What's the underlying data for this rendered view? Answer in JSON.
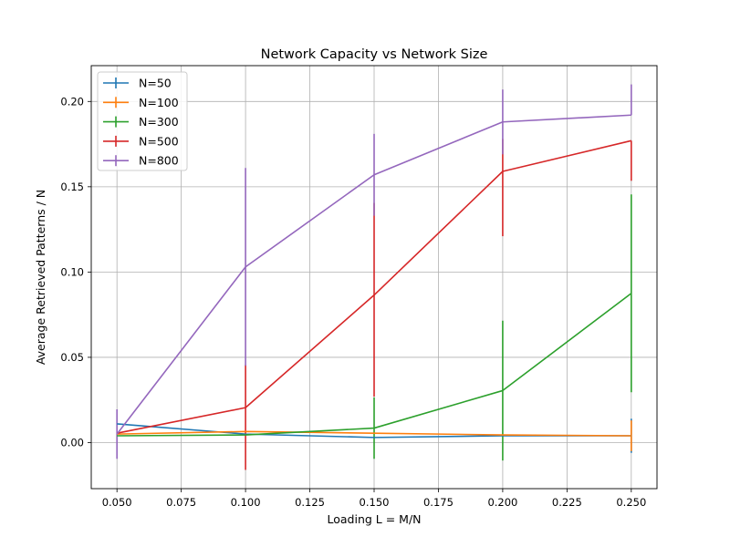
{
  "chart_data": {
    "type": "line",
    "title": "Network Capacity vs Network Size",
    "xlabel": "Loading L = M/N",
    "ylabel": "Average Retrieved Patterns / N",
    "x": [
      0.05,
      0.1,
      0.15,
      0.2,
      0.25
    ],
    "xlim": [
      0.04,
      0.26
    ],
    "ylim": [
      -0.027,
      0.221
    ],
    "xticks": [
      0.05,
      0.075,
      0.1,
      0.125,
      0.15,
      0.175,
      0.2,
      0.225,
      0.25
    ],
    "xtick_labels": [
      "0.050",
      "0.075",
      "0.100",
      "0.125",
      "0.150",
      "0.175",
      "0.200",
      "0.225",
      "0.250"
    ],
    "yticks": [
      0.0,
      0.05,
      0.1,
      0.15,
      0.2
    ],
    "ytick_labels": [
      "0.00",
      "0.05",
      "0.10",
      "0.15",
      "0.20"
    ],
    "grid": true,
    "legend_position": "top-left",
    "series": [
      {
        "name": "N=50",
        "color": "#1f77b4",
        "values": [
          0.011,
          0.005,
          0.003,
          0.004,
          0.004
        ],
        "err": [
          0.0,
          0.0,
          0.0,
          0.0,
          0.01
        ]
      },
      {
        "name": "N=100",
        "color": "#ff7f0e",
        "values": [
          0.005,
          0.0065,
          0.0055,
          0.0045,
          0.004
        ],
        "err": [
          0.0,
          0.0,
          0.0,
          0.0,
          0.009
        ]
      },
      {
        "name": "N=300",
        "color": "#2ca02c",
        "values": [
          0.004,
          0.0045,
          0.0085,
          0.0305,
          0.0875
        ],
        "err": [
          0.0,
          0.0,
          0.018,
          0.041,
          0.058
        ]
      },
      {
        "name": "N=500",
        "color": "#d62728",
        "values": [
          0.0055,
          0.0205,
          0.0865,
          0.159,
          0.177
        ],
        "err": [
          0.0,
          0.025,
          0.054,
          0.019,
          0.0
        ],
        "err_lower": [
          0.0,
          0.0365,
          0.0595,
          0.038,
          0.0235
        ]
      },
      {
        "name": "N=800",
        "color": "#9467bd",
        "values": [
          0.005,
          0.103,
          0.157,
          0.188,
          0.192
        ],
        "err": [
          0.0145,
          0.058,
          0.024,
          0.019,
          0.018
        ],
        "err_lower": [
          0.0145,
          0.058,
          0.024,
          0.019,
          0.0
        ]
      }
    ]
  }
}
